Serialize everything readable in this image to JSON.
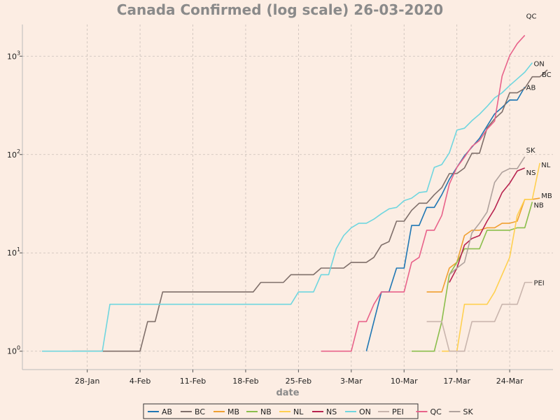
{
  "chart_data": {
    "type": "line",
    "title": "Canada Confirmed (log scale) 26-03-2020",
    "xlabel": "date",
    "ylabel": "",
    "yscale": "log",
    "ylim": [
      0.65,
      2100
    ],
    "xlim": [
      "2020-01-22",
      "2020-03-29"
    ],
    "grid": true,
    "legend_position": "bottom",
    "x_ticks": [
      {
        "date": "2020-01-28",
        "label": "28-Jan"
      },
      {
        "date": "2020-02-04",
        "label": "4-Feb"
      },
      {
        "date": "2020-02-11",
        "label": "11-Feb"
      },
      {
        "date": "2020-02-18",
        "label": "18-Feb"
      },
      {
        "date": "2020-02-25",
        "label": "25-Feb"
      },
      {
        "date": "2020-03-03",
        "label": "3-Mar"
      },
      {
        "date": "2020-03-10",
        "label": "10-Mar"
      },
      {
        "date": "2020-03-17",
        "label": "17-Mar"
      },
      {
        "date": "2020-03-24",
        "label": "24-Mar"
      }
    ],
    "y_ticks": [
      {
        "value": 1,
        "base": "10",
        "exp": "0"
      },
      {
        "value": 10,
        "base": "10",
        "exp": "1"
      },
      {
        "value": 100,
        "base": "10",
        "exp": "2"
      },
      {
        "value": 1000,
        "base": "10",
        "exp": "3"
      }
    ],
    "series": [
      {
        "name": "AB",
        "color": "#1f77b4",
        "label": "AB",
        "points": [
          [
            "2020-03-05",
            1
          ],
          [
            "2020-03-06",
            2
          ],
          [
            "2020-03-07",
            4
          ],
          [
            "2020-03-08",
            4
          ],
          [
            "2020-03-09",
            7
          ],
          [
            "2020-03-10",
            7
          ],
          [
            "2020-03-11",
            19
          ],
          [
            "2020-03-12",
            19
          ],
          [
            "2020-03-13",
            29
          ],
          [
            "2020-03-14",
            29
          ],
          [
            "2020-03-15",
            39
          ],
          [
            "2020-03-16",
            56
          ],
          [
            "2020-03-17",
            74
          ],
          [
            "2020-03-18",
            97
          ],
          [
            "2020-03-19",
            119
          ],
          [
            "2020-03-20",
            146
          ],
          [
            "2020-03-21",
            195
          ],
          [
            "2020-03-22",
            259
          ],
          [
            "2020-03-23",
            301
          ],
          [
            "2020-03-24",
            359
          ],
          [
            "2020-03-25",
            358
          ],
          [
            "2020-03-26",
            486
          ]
        ]
      },
      {
        "name": "BC",
        "color": "#7f6f6a",
        "label": "BC",
        "points": [
          [
            "2020-01-26",
            1
          ],
          [
            "2020-01-27",
            1
          ],
          [
            "2020-01-28",
            1
          ],
          [
            "2020-01-29",
            1
          ],
          [
            "2020-01-30",
            1
          ],
          [
            "2020-01-31",
            1
          ],
          [
            "2020-02-01",
            1
          ],
          [
            "2020-02-02",
            1
          ],
          [
            "2020-02-03",
            1
          ],
          [
            "2020-02-04",
            1
          ],
          [
            "2020-02-05",
            2
          ],
          [
            "2020-02-06",
            2
          ],
          [
            "2020-02-07",
            4
          ],
          [
            "2020-02-08",
            4
          ],
          [
            "2020-02-09",
            4
          ],
          [
            "2020-02-10",
            4
          ],
          [
            "2020-02-11",
            4
          ],
          [
            "2020-02-12",
            4
          ],
          [
            "2020-02-13",
            4
          ],
          [
            "2020-02-14",
            4
          ],
          [
            "2020-02-15",
            4
          ],
          [
            "2020-02-16",
            4
          ],
          [
            "2020-02-17",
            4
          ],
          [
            "2020-02-18",
            4
          ],
          [
            "2020-02-19",
            4
          ],
          [
            "2020-02-20",
            5
          ],
          [
            "2020-02-21",
            5
          ],
          [
            "2020-02-22",
            5
          ],
          [
            "2020-02-23",
            5
          ],
          [
            "2020-02-24",
            6
          ],
          [
            "2020-02-25",
            6
          ],
          [
            "2020-02-26",
            6
          ],
          [
            "2020-02-27",
            6
          ],
          [
            "2020-02-28",
            7
          ],
          [
            "2020-02-29",
            7
          ],
          [
            "2020-03-01",
            7
          ],
          [
            "2020-03-02",
            7
          ],
          [
            "2020-03-03",
            8
          ],
          [
            "2020-03-04",
            8
          ],
          [
            "2020-03-05",
            8
          ],
          [
            "2020-03-06",
            9
          ],
          [
            "2020-03-07",
            12
          ],
          [
            "2020-03-08",
            13
          ],
          [
            "2020-03-09",
            21
          ],
          [
            "2020-03-10",
            21
          ],
          [
            "2020-03-11",
            27
          ],
          [
            "2020-03-12",
            32
          ],
          [
            "2020-03-13",
            32
          ],
          [
            "2020-03-14",
            39
          ],
          [
            "2020-03-15",
            46
          ],
          [
            "2020-03-16",
            64
          ],
          [
            "2020-03-17",
            64
          ],
          [
            "2020-03-18",
            73
          ],
          [
            "2020-03-19",
            103
          ],
          [
            "2020-03-20",
            103
          ],
          [
            "2020-03-21",
            186
          ],
          [
            "2020-03-22",
            231
          ],
          [
            "2020-03-23",
            271
          ],
          [
            "2020-03-24",
            424
          ],
          [
            "2020-03-25",
            424
          ],
          [
            "2020-03-26",
            472
          ],
          [
            "2020-03-27",
            617
          ],
          [
            "2020-03-28",
            617
          ],
          [
            "2020-03-29",
            725
          ]
        ]
      },
      {
        "name": "MB",
        "color": "#f0a030",
        "label": "MB",
        "points": [
          [
            "2020-03-13",
            4
          ],
          [
            "2020-03-14",
            4
          ],
          [
            "2020-03-15",
            4
          ],
          [
            "2020-03-16",
            7
          ],
          [
            "2020-03-17",
            8
          ],
          [
            "2020-03-18",
            15
          ],
          [
            "2020-03-19",
            17
          ],
          [
            "2020-03-20",
            17
          ],
          [
            "2020-03-21",
            18
          ],
          [
            "2020-03-22",
            18
          ],
          [
            "2020-03-23",
            20
          ],
          [
            "2020-03-24",
            20
          ],
          [
            "2020-03-25",
            21
          ],
          [
            "2020-03-26",
            35
          ],
          [
            "2020-03-27",
            35
          ],
          [
            "2020-03-28",
            36
          ]
        ]
      },
      {
        "name": "NB",
        "color": "#8bbe4c",
        "label": "NB",
        "points": [
          [
            "2020-03-11",
            1
          ],
          [
            "2020-03-12",
            1
          ],
          [
            "2020-03-13",
            1
          ],
          [
            "2020-03-14",
            1
          ],
          [
            "2020-03-15",
            2
          ],
          [
            "2020-03-16",
            6
          ],
          [
            "2020-03-17",
            8
          ],
          [
            "2020-03-18",
            11
          ],
          [
            "2020-03-19",
            11
          ],
          [
            "2020-03-20",
            11
          ],
          [
            "2020-03-21",
            17
          ],
          [
            "2020-03-22",
            17
          ],
          [
            "2020-03-23",
            17
          ],
          [
            "2020-03-24",
            17
          ],
          [
            "2020-03-25",
            18
          ],
          [
            "2020-03-26",
            18
          ],
          [
            "2020-03-27",
            33
          ]
        ]
      },
      {
        "name": "NL",
        "color": "#ffd050",
        "label": "NL",
        "points": [
          [
            "2020-03-15",
            1
          ],
          [
            "2020-03-16",
            1
          ],
          [
            "2020-03-17",
            1
          ],
          [
            "2020-03-18",
            3
          ],
          [
            "2020-03-19",
            3
          ],
          [
            "2020-03-20",
            3
          ],
          [
            "2020-03-21",
            3
          ],
          [
            "2020-03-22",
            4
          ],
          [
            "2020-03-23",
            6
          ],
          [
            "2020-03-24",
            9
          ],
          [
            "2020-03-25",
            24
          ],
          [
            "2020-03-26",
            35
          ],
          [
            "2020-03-27",
            35
          ],
          [
            "2020-03-28",
            82
          ]
        ]
      },
      {
        "name": "NS",
        "color": "#b8234f",
        "label": "NS",
        "points": [
          [
            "2020-03-16",
            5
          ],
          [
            "2020-03-17",
            7
          ],
          [
            "2020-03-18",
            12
          ],
          [
            "2020-03-19",
            14
          ],
          [
            "2020-03-20",
            15
          ],
          [
            "2020-03-21",
            21
          ],
          [
            "2020-03-22",
            28
          ],
          [
            "2020-03-23",
            41
          ],
          [
            "2020-03-24",
            51
          ],
          [
            "2020-03-25",
            68
          ],
          [
            "2020-03-26",
            73
          ]
        ]
      },
      {
        "name": "ON",
        "color": "#6fd6df",
        "label": "ON",
        "points": [
          [
            "2020-01-22",
            1
          ],
          [
            "2020-01-23",
            1
          ],
          [
            "2020-01-24",
            1
          ],
          [
            "2020-01-25",
            1
          ],
          [
            "2020-01-26",
            1
          ],
          [
            "2020-01-27",
            1
          ],
          [
            "2020-01-28",
            1
          ],
          [
            "2020-01-29",
            1
          ],
          [
            "2020-01-30",
            1
          ],
          [
            "2020-01-31",
            3
          ],
          [
            "2020-02-01",
            3
          ],
          [
            "2020-02-02",
            3
          ],
          [
            "2020-02-03",
            3
          ],
          [
            "2020-02-04",
            3
          ],
          [
            "2020-02-05",
            3
          ],
          [
            "2020-02-06",
            3
          ],
          [
            "2020-02-07",
            3
          ],
          [
            "2020-02-08",
            3
          ],
          [
            "2020-02-09",
            3
          ],
          [
            "2020-02-10",
            3
          ],
          [
            "2020-02-11",
            3
          ],
          [
            "2020-02-12",
            3
          ],
          [
            "2020-02-13",
            3
          ],
          [
            "2020-02-14",
            3
          ],
          [
            "2020-02-15",
            3
          ],
          [
            "2020-02-16",
            3
          ],
          [
            "2020-02-17",
            3
          ],
          [
            "2020-02-18",
            3
          ],
          [
            "2020-02-19",
            3
          ],
          [
            "2020-02-20",
            3
          ],
          [
            "2020-02-21",
            3
          ],
          [
            "2020-02-22",
            3
          ],
          [
            "2020-02-23",
            3
          ],
          [
            "2020-02-24",
            3
          ],
          [
            "2020-02-25",
            4
          ],
          [
            "2020-02-26",
            4
          ],
          [
            "2020-02-27",
            4
          ],
          [
            "2020-02-28",
            6
          ],
          [
            "2020-02-29",
            6
          ],
          [
            "2020-03-01",
            11
          ],
          [
            "2020-03-02",
            15
          ],
          [
            "2020-03-03",
            18
          ],
          [
            "2020-03-04",
            20
          ],
          [
            "2020-03-05",
            20
          ],
          [
            "2020-03-06",
            22
          ],
          [
            "2020-03-07",
            25
          ],
          [
            "2020-03-08",
            28
          ],
          [
            "2020-03-09",
            29
          ],
          [
            "2020-03-10",
            34
          ],
          [
            "2020-03-11",
            36
          ],
          [
            "2020-03-12",
            41
          ],
          [
            "2020-03-13",
            42
          ],
          [
            "2020-03-14",
            74
          ],
          [
            "2020-03-15",
            79
          ],
          [
            "2020-03-16",
            104
          ],
          [
            "2020-03-17",
            177
          ],
          [
            "2020-03-18",
            185
          ],
          [
            "2020-03-19",
            221
          ],
          [
            "2020-03-20",
            257
          ],
          [
            "2020-03-21",
            308
          ],
          [
            "2020-03-22",
            377
          ],
          [
            "2020-03-23",
            425
          ],
          [
            "2020-03-24",
            503
          ],
          [
            "2020-03-25",
            588
          ],
          [
            "2020-03-26",
            688
          ],
          [
            "2020-03-27",
            858
          ]
        ]
      },
      {
        "name": "PEI",
        "color": "#c9b5ad",
        "label": "PEI",
        "points": [
          [
            "2020-03-13",
            2
          ],
          [
            "2020-03-14",
            2
          ],
          [
            "2020-03-15",
            2
          ],
          [
            "2020-03-16",
            1
          ],
          [
            "2020-03-17",
            1
          ],
          [
            "2020-03-18",
            1
          ],
          [
            "2020-03-19",
            2
          ],
          [
            "2020-03-20",
            2
          ],
          [
            "2020-03-21",
            2
          ],
          [
            "2020-03-22",
            2
          ],
          [
            "2020-03-23",
            3
          ],
          [
            "2020-03-24",
            3
          ],
          [
            "2020-03-25",
            3
          ],
          [
            "2020-03-26",
            5
          ],
          [
            "2020-03-27",
            5
          ]
        ]
      },
      {
        "name": "QC",
        "color": "#e8628a",
        "label": "QC",
        "points": [
          [
            "2020-02-28",
            1
          ],
          [
            "2020-02-29",
            1
          ],
          [
            "2020-03-01",
            1
          ],
          [
            "2020-03-02",
            1
          ],
          [
            "2020-03-03",
            1
          ],
          [
            "2020-03-04",
            2
          ],
          [
            "2020-03-05",
            2
          ],
          [
            "2020-03-06",
            3
          ],
          [
            "2020-03-07",
            4
          ],
          [
            "2020-03-08",
            4
          ],
          [
            "2020-03-09",
            4
          ],
          [
            "2020-03-10",
            4
          ],
          [
            "2020-03-11",
            8
          ],
          [
            "2020-03-12",
            9
          ],
          [
            "2020-03-13",
            17
          ],
          [
            "2020-03-14",
            17
          ],
          [
            "2020-03-15",
            24
          ],
          [
            "2020-03-16",
            50
          ],
          [
            "2020-03-17",
            74
          ],
          [
            "2020-03-18",
            94
          ],
          [
            "2020-03-19",
            121
          ],
          [
            "2020-03-20",
            139
          ],
          [
            "2020-03-21",
            181
          ],
          [
            "2020-03-22",
            219
          ],
          [
            "2020-03-23",
            628
          ],
          [
            "2020-03-24",
            1013
          ],
          [
            "2020-03-25",
            1342
          ],
          [
            "2020-03-26",
            1632
          ]
        ]
      },
      {
        "name": "SK",
        "color": "#b0a29d",
        "label": "SK",
        "points": [
          [
            "2020-03-16",
            6
          ],
          [
            "2020-03-17",
            7
          ],
          [
            "2020-03-18",
            8
          ],
          [
            "2020-03-19",
            16
          ],
          [
            "2020-03-20",
            20
          ],
          [
            "2020-03-21",
            26
          ],
          [
            "2020-03-22",
            52
          ],
          [
            "2020-03-23",
            66
          ],
          [
            "2020-03-24",
            72
          ],
          [
            "2020-03-25",
            72
          ],
          [
            "2020-03-26",
            95
          ]
        ]
      }
    ]
  }
}
